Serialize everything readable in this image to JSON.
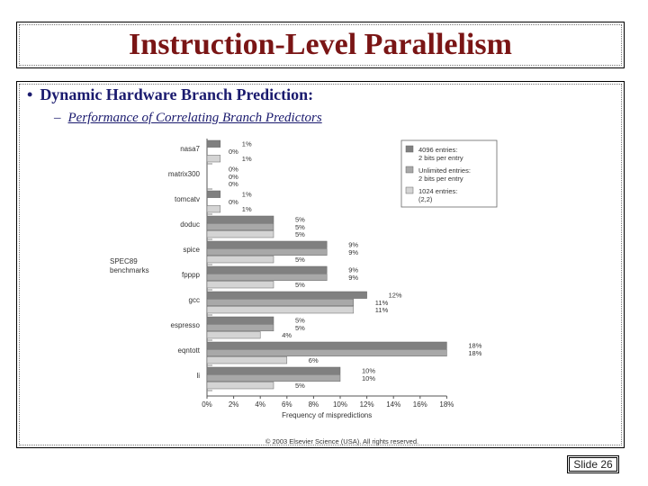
{
  "slide": {
    "title": "Instruction-Level Parallelism",
    "bullet": "Dynamic Hardware Branch Prediction:",
    "subbullet": "Performance of Correlating Branch Predictors",
    "slide_number": "Slide 26",
    "bullet_symbol": "•",
    "sub_symbol": "–"
  },
  "chart_data": {
    "type": "bar",
    "orientation": "horizontal",
    "xlabel": "Frequency of mispredictions",
    "ylabel": "SPEC89 benchmarks",
    "xlim": [
      0,
      18
    ],
    "xticks": [
      "0%",
      "2%",
      "4%",
      "6%",
      "8%",
      "10%",
      "12%",
      "14%",
      "16%",
      "18%"
    ],
    "categories": [
      "nasa7",
      "matrix300",
      "tomcatv",
      "doduc",
      "spice",
      "fpppp",
      "gcc",
      "espresso",
      "eqntott",
      "li"
    ],
    "series": [
      {
        "name": "4096 entries: 2 bits per entry",
        "values": [
          1,
          0,
          1,
          5,
          9,
          9,
          12,
          5,
          18,
          10
        ],
        "labels": [
          "1%",
          "0%",
          "1%",
          "5%",
          "9%",
          "9%",
          "12%",
          "5%",
          "18%",
          "10%"
        ],
        "color": "#808080"
      },
      {
        "name": "Unlimited entries: 2 bits per entry",
        "values": [
          0,
          0,
          0,
          5,
          9,
          9,
          11,
          5,
          18,
          10
        ],
        "labels": [
          "0%",
          "0%",
          "0%",
          "5%",
          "9%",
          "9%",
          "11%",
          "5%",
          "18%",
          "10%"
        ],
        "color": "#a8a8a8"
      },
      {
        "name": "1024 entries: (2,2)",
        "values": [
          1,
          0,
          1,
          5,
          5,
          5,
          11,
          4,
          6,
          5
        ],
        "labels": [
          "1%",
          "0%",
          "1%",
          "5%",
          "5%",
          "5%",
          "11%",
          "4%",
          "6%",
          "5%"
        ],
        "color": "#d4d4d4"
      }
    ],
    "copyright": "© 2003 Elsevier Science (USA). All rights reserved."
  }
}
